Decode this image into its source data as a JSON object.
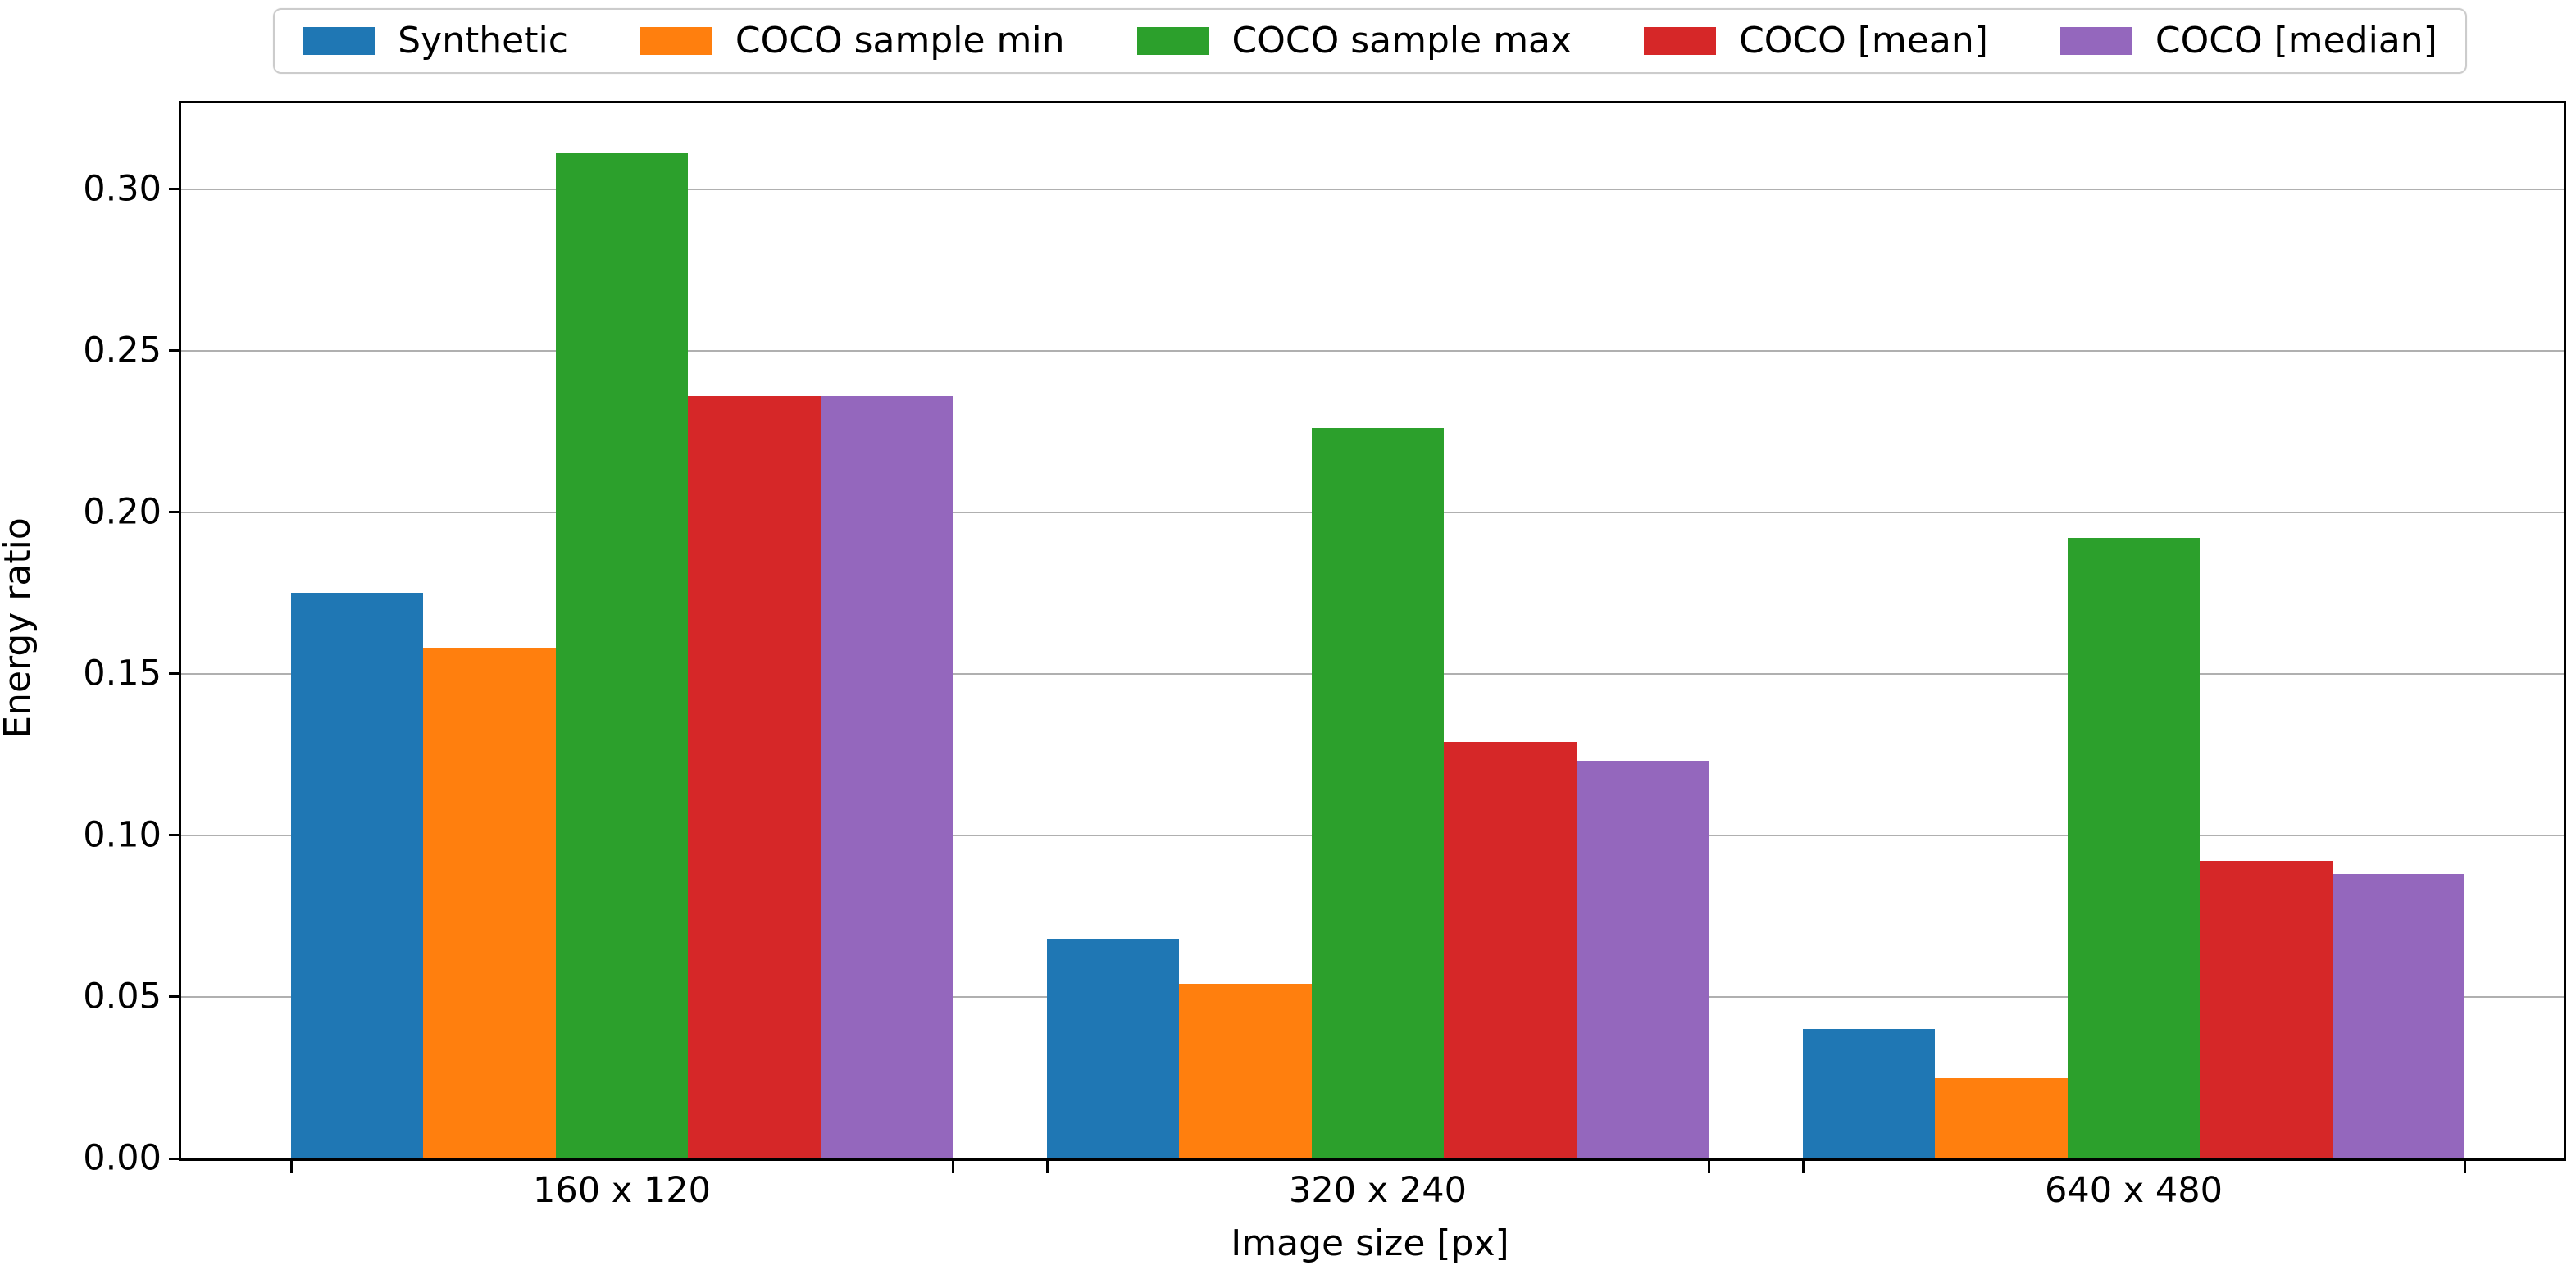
{
  "chart_data": {
    "type": "bar",
    "title": "",
    "xlabel": "Image size [px]",
    "ylabel": "Energy ratio",
    "categories": [
      "160 x 120",
      "320 x 240",
      "640 x 480"
    ],
    "series": [
      {
        "name": "Synthetic",
        "color": "#1f77b4",
        "values": [
          0.175,
          0.068,
          0.04
        ]
      },
      {
        "name": "COCO sample min",
        "color": "#ff7f0e",
        "values": [
          0.158,
          0.054,
          0.025
        ]
      },
      {
        "name": "COCO sample max",
        "color": "#2ca02c",
        "values": [
          0.311,
          0.226,
          0.192
        ]
      },
      {
        "name": "COCO [mean]",
        "color": "#d62728",
        "values": [
          0.236,
          0.129,
          0.092
        ]
      },
      {
        "name": "COCO [median]",
        "color": "#9467bd",
        "values": [
          0.236,
          0.123,
          0.088
        ]
      }
    ],
    "ylim": [
      0,
      0.3266
    ],
    "yticks": [
      0.0,
      0.05,
      0.1,
      0.15,
      0.2,
      0.25,
      0.3
    ],
    "ytick_labels": [
      "0.00",
      "0.05",
      "0.10",
      "0.15",
      "0.20",
      "0.25",
      "0.30"
    ],
    "grid": "horizontal",
    "gridline_color": "#b0b0b0",
    "legend_position": "top-center",
    "background_color": "#ffffff",
    "spine_color": "#000000"
  }
}
